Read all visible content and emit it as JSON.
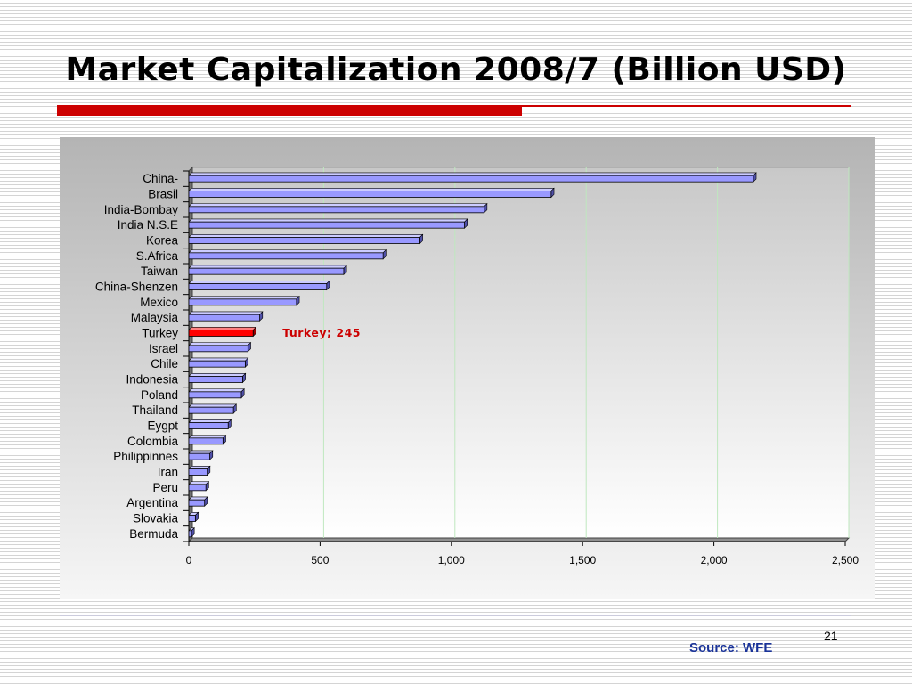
{
  "slide": {
    "title": "Market Capitalization 2008/7 (Billion USD)",
    "page_number": "21",
    "source": "Source: WFE"
  },
  "colors": {
    "bar": "#9999ff",
    "highlight": "#ff0000",
    "annotation": "#cc0000",
    "title_rule": "#cc0000",
    "source_text": "#1a3399"
  },
  "chart_data": {
    "type": "bar",
    "orientation": "horizontal",
    "title": "",
    "xlabel": "",
    "ylabel": "",
    "categories": [
      "China-",
      "Brasil",
      "India-Bombay",
      "India N.S.E",
      "Korea",
      "S.Africa",
      "Taiwan",
      "China-Shenzen",
      "Mexico",
      "Malaysia",
      "Turkey",
      "Israel",
      "Chile",
      "Indonesia",
      "Poland",
      "Thailand",
      "Eygpt",
      "Colombia",
      "Philippinnes",
      "Iran",
      "Peru",
      "Argentina",
      "Slovakia",
      "Bermuda"
    ],
    "values": [
      2150,
      1380,
      1125,
      1050,
      880,
      740,
      590,
      525,
      410,
      270,
      245,
      225,
      215,
      205,
      200,
      170,
      150,
      130,
      80,
      70,
      65,
      60,
      25,
      10
    ],
    "highlight_category": "Turkey",
    "annotation": "Turkey; 245",
    "xlim": [
      0,
      2500
    ],
    "xticks": [
      0,
      500,
      1000,
      1500,
      2000,
      2500
    ],
    "xtick_labels": [
      "0",
      "500",
      "1,000",
      "1,500",
      "2,000",
      "2,500"
    ],
    "grid": "vertical",
    "legend": "none",
    "style": "3d"
  }
}
